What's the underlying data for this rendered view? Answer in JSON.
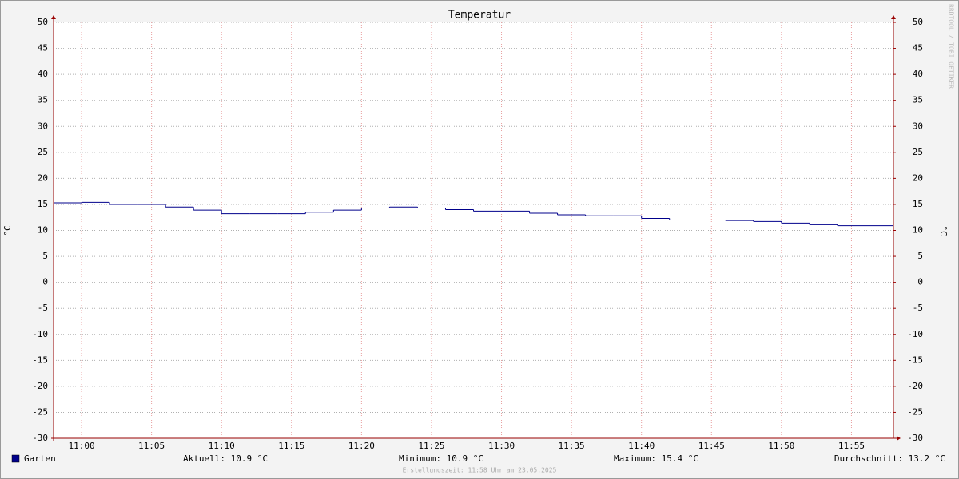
{
  "chart_data": {
    "type": "step",
    "title": "Temperatur",
    "y_label": "°C",
    "x": [
      "10:58",
      "11:00",
      "11:02",
      "11:04",
      "11:06",
      "11:08",
      "11:10",
      "11:12",
      "11:14",
      "11:16",
      "11:18",
      "11:20",
      "11:22",
      "11:24",
      "11:26",
      "11:28",
      "11:30",
      "11:32",
      "11:34",
      "11:36",
      "11:38",
      "11:40",
      "11:42",
      "11:44",
      "11:46",
      "11:48",
      "11:50",
      "11:52",
      "11:54",
      "11:56"
    ],
    "series": [
      {
        "name": "Garten",
        "color": "#00008b",
        "values": [
          15.3,
          15.4,
          15.0,
          15.0,
          14.5,
          13.9,
          13.2,
          13.2,
          13.2,
          13.5,
          13.9,
          14.3,
          14.5,
          14.3,
          14.0,
          13.7,
          13.7,
          13.3,
          13.0,
          12.8,
          12.8,
          12.3,
          12.0,
          12.0,
          11.9,
          11.7,
          11.4,
          11.1,
          10.9,
          10.9
        ]
      }
    ],
    "xlim": [
      "10:58",
      "11:58"
    ],
    "xticks": [
      "11:00",
      "11:05",
      "11:10",
      "11:15",
      "11:20",
      "11:25",
      "11:30",
      "11:35",
      "11:40",
      "11:45",
      "11:50",
      "11:55"
    ],
    "ylim": [
      -30,
      50
    ],
    "yticks": [
      -30,
      -25,
      -20,
      -15,
      -10,
      -5,
      0,
      5,
      10,
      15,
      20,
      25,
      30,
      35,
      40,
      45,
      50
    ],
    "y2lim": [
      -30,
      50
    ],
    "y2ticks": [
      -30,
      -25,
      -20,
      -15,
      -10,
      -5,
      0,
      5,
      10,
      15,
      20,
      25,
      30,
      35,
      40,
      45,
      50
    ],
    "grid": true,
    "legend_stats": [
      "Aktuell: 10.9 °C",
      "Minimum: 10.9 °C",
      "Maximum: 15.4 °C",
      "Durchschnitt: 13.2 °C"
    ],
    "footer": "Erstellungszeit: 11:58 Uhr am 23.05.2025",
    "watermark": "RRDTOOL / TOBI OETIKER"
  }
}
